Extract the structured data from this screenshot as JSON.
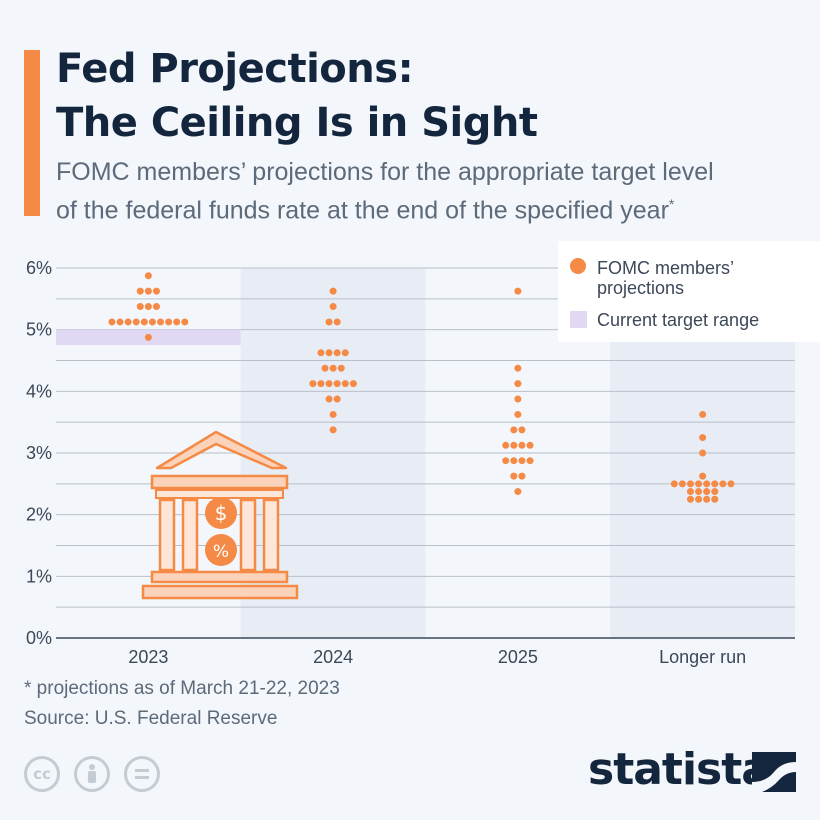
{
  "header": {
    "title_line1": "Fed Projections:",
    "title_line2": "The Ceiling Is in Sight",
    "subtitle_line1": "FOMC members’ projections for the appropriate target level",
    "subtitle_line2": "of the federal funds rate at the end of the specified year",
    "subtitle_mark": "*"
  },
  "footer": {
    "footnote": "* projections as of March 21-22, 2023",
    "source": "Source: U.S. Federal Reserve",
    "license_icons": [
      "cc-icon",
      "by-icon",
      "nd-icon"
    ],
    "logo_text": "statista"
  },
  "colors": {
    "accent": "#f48a45",
    "dot": "#f48a45",
    "range": "#e1d9f4",
    "band": "#e8ecf4",
    "title": "#14263d",
    "text": "#5d6a7a"
  },
  "chart_data": {
    "type": "scatter",
    "categories": [
      "2023",
      "2024",
      "2025",
      "Longer run"
    ],
    "y_tick_labels": [
      "0%",
      "1%",
      "2%",
      "3%",
      "4%",
      "5%",
      "6%"
    ],
    "ylim": [
      0,
      6
    ],
    "grid": true,
    "legend_position": "top-right",
    "legend": [
      {
        "label": "FOMC members’ projections",
        "marker": "dot"
      },
      {
        "label": "Current target range",
        "marker": "square"
      }
    ],
    "current_target_range": {
      "category": "2023",
      "low": 4.75,
      "high": 5.0
    },
    "series": [
      {
        "name": "FOMC members’ projections",
        "points": {
          "2023": [
            {
              "rate": 5.875,
              "count": 1
            },
            {
              "rate": 5.625,
              "count": 3
            },
            {
              "rate": 5.375,
              "count": 3
            },
            {
              "rate": 5.125,
              "count": 10
            },
            {
              "rate": 4.875,
              "count": 1
            }
          ],
          "2024": [
            {
              "rate": 5.625,
              "count": 1
            },
            {
              "rate": 5.375,
              "count": 1
            },
            {
              "rate": 5.125,
              "count": 2
            },
            {
              "rate": 4.625,
              "count": 4
            },
            {
              "rate": 4.375,
              "count": 3
            },
            {
              "rate": 4.125,
              "count": 6
            },
            {
              "rate": 3.875,
              "count": 2
            },
            {
              "rate": 3.625,
              "count": 1
            },
            {
              "rate": 3.375,
              "count": 1
            }
          ],
          "2025": [
            {
              "rate": 5.625,
              "count": 1
            },
            {
              "rate": 4.375,
              "count": 1
            },
            {
              "rate": 4.125,
              "count": 1
            },
            {
              "rate": 3.875,
              "count": 1
            },
            {
              "rate": 3.625,
              "count": 1
            },
            {
              "rate": 3.375,
              "count": 2
            },
            {
              "rate": 3.125,
              "count": 4
            },
            {
              "rate": 2.875,
              "count": 4
            },
            {
              "rate": 2.625,
              "count": 2
            },
            {
              "rate": 2.375,
              "count": 1
            }
          ],
          "Longer run": [
            {
              "rate": 3.625,
              "count": 1
            },
            {
              "rate": 3.25,
              "count": 1
            },
            {
              "rate": 3.0,
              "count": 1
            },
            {
              "rate": 2.625,
              "count": 1
            },
            {
              "rate": 2.5,
              "count": 8
            },
            {
              "rate": 2.375,
              "count": 4
            },
            {
              "rate": 2.25,
              "count": 4
            }
          ]
        }
      }
    ]
  }
}
